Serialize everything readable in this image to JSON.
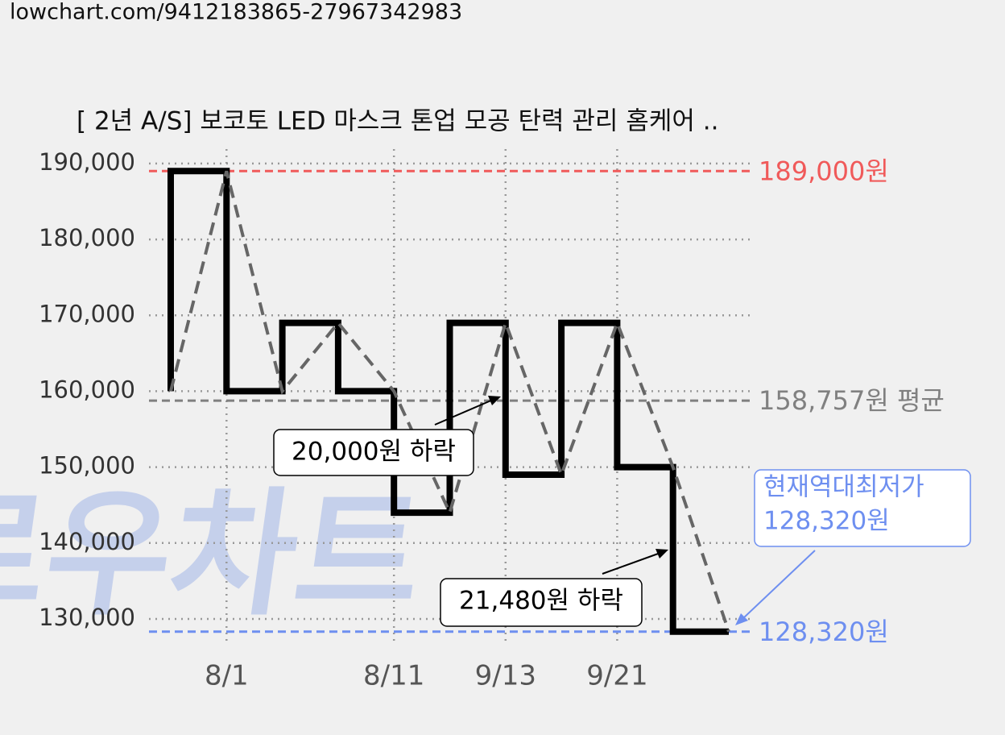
{
  "page_url": "lowchart.com/9412183865-27967342983",
  "chart_data": {
    "type": "line",
    "step": true,
    "title": "[ 2년 A/S] 보코토 LED 마스크 톤업 모공 탄력 관리 홈케어 ..",
    "watermark": "로우차트",
    "categories": [
      null,
      "8/1",
      null,
      null,
      "8/11",
      null,
      "9/13",
      null,
      "9/21",
      null,
      null
    ],
    "series": [
      {
        "color": "#000000",
        "values": [
          160000,
          189000,
          160000,
          169000,
          160000,
          144000,
          169000,
          149000,
          169000,
          150000,
          128320
        ]
      }
    ],
    "ylim": [
      126600,
      191900
    ],
    "yticks": [
      {
        "value": 130000,
        "label": "130,000"
      },
      {
        "value": 140000,
        "label": "140,000"
      },
      {
        "value": 150000,
        "label": "150,000"
      },
      {
        "value": 160000,
        "label": "160,000"
      },
      {
        "value": 170000,
        "label": "170,000"
      },
      {
        "value": 180000,
        "label": "180,000"
      },
      {
        "value": 190000,
        "label": "190,000"
      }
    ],
    "grid": true,
    "reference_lines": [
      {
        "value": 189000,
        "label": "189,000원",
        "color": "#f05a5a"
      },
      {
        "value": 158757,
        "label": "158,757원 평균",
        "color": "#808080"
      },
      {
        "value": 128320,
        "label": "128,320원",
        "color": "#6e8ff0"
      }
    ],
    "annotations": [
      {
        "text": "20,000원 하락"
      },
      {
        "text": "21,480원 하락"
      },
      {
        "lines": [
          "현재역대최저가",
          "128,320원"
        ]
      }
    ]
  }
}
